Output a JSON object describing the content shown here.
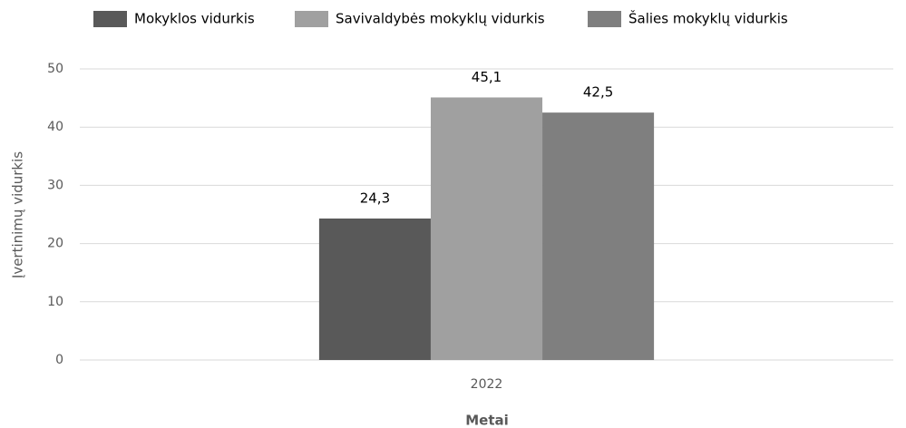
{
  "chart_data": {
    "type": "bar",
    "categories": [
      "2022"
    ],
    "series": [
      {
        "name": "Mokyklos vidurkis",
        "color": "#595959",
        "values": [
          24.3
        ],
        "value_labels": [
          "24,3"
        ]
      },
      {
        "name": "Savivaldybės mokyklų vidurkis",
        "color": "#a0a0a0",
        "values": [
          45.1
        ],
        "value_labels": [
          "45,1"
        ]
      },
      {
        "name": "Šalies mokyklų vidurkis",
        "color": "#7f7f7f",
        "values": [
          42.5
        ],
        "value_labels": [
          "42,5"
        ]
      }
    ],
    "ylim": [
      0,
      50
    ],
    "yticks": [
      0,
      10,
      20,
      30,
      40,
      50
    ],
    "grid": true,
    "y_label": "Įvertinimų vidurkis",
    "x_label": "Metai",
    "legend": "top"
  }
}
